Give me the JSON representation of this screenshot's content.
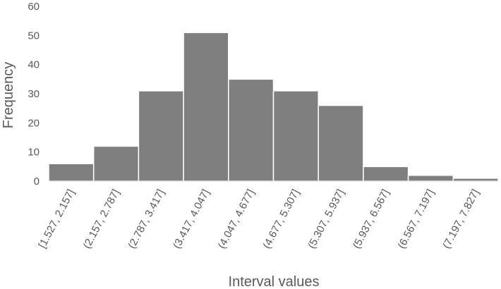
{
  "chart_data": {
    "type": "bar",
    "title": "",
    "xlabel": "Interval values",
    "ylabel": "Frequency",
    "ylim": [
      0,
      60
    ],
    "yticks": [
      0,
      10,
      20,
      30,
      40,
      50,
      60
    ],
    "grid": false,
    "legend": "none",
    "categories": [
      "[1.527, 2.157]",
      "(2.157, 2.787]",
      "(2.787, 3.417]",
      "(3.417, 4.047]",
      "(4.047, 4.677]",
      "(4.677, 5.307]",
      "(5.307, 5.937]",
      "(5.937, 6.567]",
      "(6.567, 7.197]",
      "(7.197, 7.827]"
    ],
    "values": [
      6,
      12,
      31,
      51,
      35,
      31,
      26,
      5,
      2,
      1
    ],
    "colors": {
      "bar": "#7f7f7f",
      "bar_edge": "#ffffff",
      "axis": "#d9d9d9",
      "text": "#595959"
    }
  }
}
